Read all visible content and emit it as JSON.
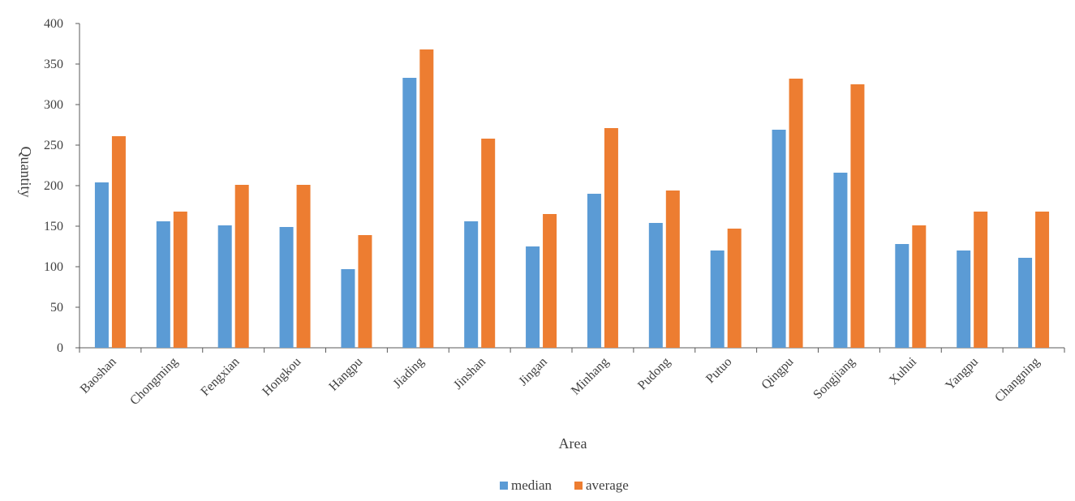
{
  "chart_data": {
    "type": "bar",
    "title": "",
    "xlabel": "Area",
    "ylabel": "Quantity",
    "ylim": [
      0,
      400
    ],
    "yticks": [
      0,
      50,
      100,
      150,
      200,
      250,
      300,
      350,
      400
    ],
    "grid": false,
    "legend_position": "bottom",
    "categories": [
      "Baoshan",
      "Chongming",
      "Fengxian",
      "Hongkou",
      "Hangpu",
      "Jiading",
      "Jinshan",
      "Jingan",
      "Minhang",
      "Pudong",
      "Putuo",
      "Qingpu",
      "Songjiang",
      "Xuhui",
      "Yangpu",
      "Changning"
    ],
    "series": [
      {
        "name": "median",
        "color": "#5B9BD5",
        "values": [
          204,
          156,
          151,
          149,
          97,
          333,
          156,
          125,
          190,
          154,
          120,
          269,
          216,
          128,
          120,
          111
        ]
      },
      {
        "name": "average",
        "color": "#ED7D31",
        "values": [
          261,
          168,
          201,
          201,
          139,
          368,
          258,
          165,
          271,
          194,
          147,
          332,
          325,
          151,
          168,
          168
        ]
      }
    ]
  }
}
